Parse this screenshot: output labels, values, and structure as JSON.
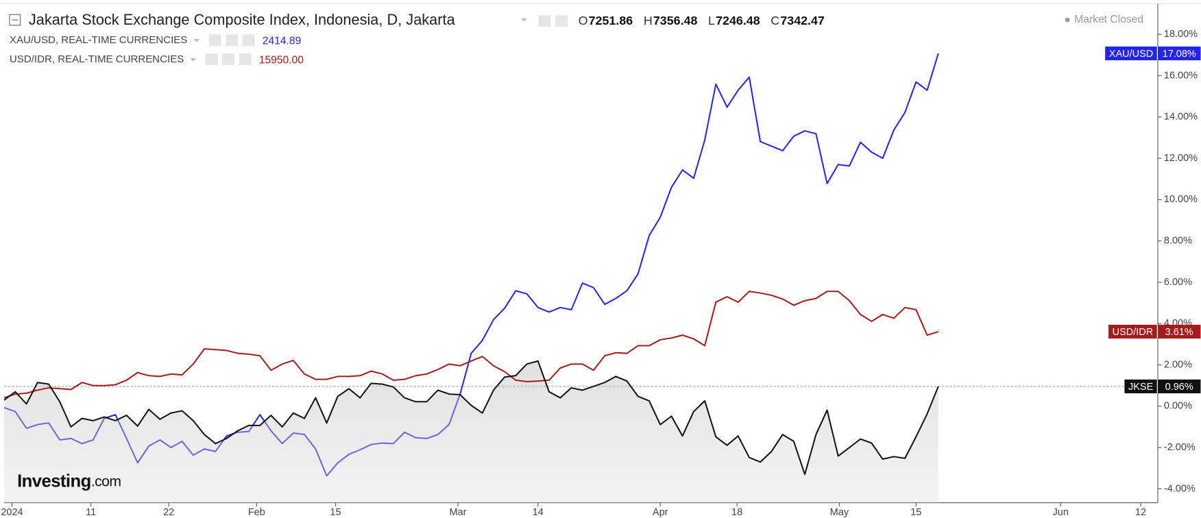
{
  "header": {
    "title": "Jakarta Stock Exchange Composite Index, Indonesia, D, Jakarta",
    "ohlc": [
      {
        "key": "O",
        "value": "7251.86"
      },
      {
        "key": "H",
        "value": "7356.48"
      },
      {
        "key": "L",
        "value": "7246.48"
      },
      {
        "key": "C",
        "value": "7342.47"
      }
    ],
    "status": "Market Closed"
  },
  "logo": {
    "brand": "Investing",
    "suffix": ".com"
  },
  "chart_data": {
    "type": "line",
    "xlim": [
      0,
      103.6
    ],
    "xticks": [
      {
        "value": 0.7,
        "label": "2024"
      },
      {
        "value": 7.8,
        "label": "11"
      },
      {
        "value": 14.8,
        "label": "22"
      },
      {
        "value": 22.7,
        "label": "Feb"
      },
      {
        "value": 29.8,
        "label": "15"
      },
      {
        "value": 40.8,
        "label": "Mar"
      },
      {
        "value": 48,
        "label": "14"
      },
      {
        "value": 59,
        "label": "Apr"
      },
      {
        "value": 65.9,
        "label": "18"
      },
      {
        "value": 75.1,
        "label": "May"
      },
      {
        "value": 82,
        "label": "15"
      },
      {
        "value": 95,
        "label": "Jun"
      },
      {
        "value": 102.2,
        "label": "12"
      }
    ],
    "ylim": [
      -4.67,
      19.48
    ],
    "yticks": [
      {
        "value": -4,
        "label": "-4.00%"
      },
      {
        "value": -2,
        "label": "-2.00%"
      },
      {
        "value": 0,
        "label": "0.00%"
      },
      {
        "value": 2,
        "label": "2.00%"
      },
      {
        "value": 4,
        "label": "4.00%"
      },
      {
        "value": 6,
        "label": "6.00%"
      },
      {
        "value": 8,
        "label": "8.00%"
      },
      {
        "value": 10,
        "label": "10.00%"
      },
      {
        "value": 12,
        "label": "12.00%"
      },
      {
        "value": 14,
        "label": "14.00%"
      },
      {
        "value": 16,
        "label": "16.00%"
      },
      {
        "value": 18,
        "label": "18.00%"
      }
    ],
    "series": [
      {
        "name": "XAU/USD",
        "legend": "XAU/USD, REAL-TIME CURRENCIES",
        "price": "2414.89",
        "color": "#2424ee",
        "end_label": "17.08%",
        "values": [
          -0.07,
          -0.26,
          -1.07,
          -0.89,
          -0.81,
          -1.63,
          -1.56,
          -1.81,
          -1.63,
          -0.59,
          -0.41,
          -1.56,
          -2.74,
          -1.93,
          -1.63,
          -2.0,
          -1.7,
          -2.37,
          -2.07,
          -2.19,
          -1.44,
          -1.26,
          -1.22,
          -0.41,
          -1.19,
          -1.81,
          -1.3,
          -1.37,
          -2.07,
          -3.37,
          -2.74,
          -2.33,
          -2.11,
          -1.85,
          -1.78,
          -1.81,
          -1.26,
          -1.52,
          -1.56,
          -1.37,
          -0.89,
          0.59,
          2.56,
          3.19,
          4.19,
          4.74,
          5.59,
          5.44,
          4.78,
          4.56,
          4.78,
          4.67,
          5.96,
          5.74,
          4.93,
          5.22,
          5.59,
          6.41,
          8.26,
          9.15,
          10.59,
          11.44,
          11.04,
          12.89,
          15.59,
          14.48,
          15.3,
          15.93,
          12.81,
          12.59,
          12.37,
          13.07,
          13.33,
          13.19,
          10.78,
          11.7,
          11.63,
          12.78,
          12.3,
          12.0,
          13.37,
          14.22,
          15.7,
          15.3,
          17.08
        ]
      },
      {
        "name": "USD/IDR",
        "legend": "USD/IDR, REAL-TIME CURRENCIES",
        "price": "15950.00",
        "color": "#a51c1c",
        "end_label": "3.61%",
        "values": [
          0.41,
          0.59,
          0.63,
          0.78,
          0.89,
          0.85,
          0.81,
          1.15,
          1.0,
          1.0,
          1.04,
          1.26,
          1.63,
          1.48,
          1.44,
          1.56,
          1.52,
          2.04,
          2.78,
          2.74,
          2.7,
          2.56,
          2.52,
          2.44,
          1.74,
          2.04,
          2.22,
          1.56,
          1.3,
          1.3,
          1.44,
          1.44,
          1.48,
          1.7,
          1.56,
          1.26,
          1.3,
          1.48,
          1.56,
          1.78,
          2.04,
          1.96,
          2.19,
          2.41,
          1.96,
          1.67,
          1.26,
          1.19,
          1.22,
          1.26,
          1.85,
          2.04,
          2.04,
          1.74,
          2.44,
          2.59,
          2.56,
          2.93,
          2.93,
          3.22,
          3.3,
          3.44,
          3.26,
          2.93,
          5.04,
          5.3,
          5.04,
          5.56,
          5.48,
          5.37,
          5.19,
          4.89,
          5.11,
          5.22,
          5.56,
          5.56,
          5.11,
          4.44,
          4.11,
          4.44,
          4.26,
          4.78,
          4.67,
          3.44,
          3.61
        ]
      },
      {
        "name": "JKSE",
        "color": "#111111",
        "fill": true,
        "end_label": "0.96%",
        "values": [
          0.3,
          0.7,
          0.11,
          1.15,
          1.07,
          0.22,
          -1.0,
          -0.59,
          -0.7,
          -0.52,
          -0.7,
          -0.44,
          -0.96,
          -0.15,
          -0.63,
          -0.33,
          -0.22,
          -0.7,
          -1.37,
          -1.81,
          -1.56,
          -1.19,
          -0.93,
          -0.93,
          -0.44,
          -1.0,
          -0.33,
          -0.59,
          0.41,
          -0.81,
          0.48,
          0.85,
          0.41,
          1.11,
          1.07,
          0.93,
          0.41,
          0.22,
          0.22,
          0.78,
          0.59,
          0.56,
          0.04,
          -0.33,
          0.78,
          1.41,
          1.48,
          2.04,
          2.19,
          0.7,
          0.41,
          0.89,
          0.78,
          0.96,
          1.15,
          1.44,
          1.22,
          0.48,
          0.26,
          -0.89,
          -0.48,
          -1.44,
          -0.26,
          0.26,
          -1.48,
          -1.89,
          -1.44,
          -2.48,
          -2.7,
          -2.19,
          -1.37,
          -1.7,
          -3.3,
          -1.37,
          -0.19,
          -2.41,
          -2.0,
          -1.59,
          -1.78,
          -2.56,
          -2.44,
          -2.52,
          -1.48,
          -0.37,
          0.96
        ]
      }
    ]
  }
}
